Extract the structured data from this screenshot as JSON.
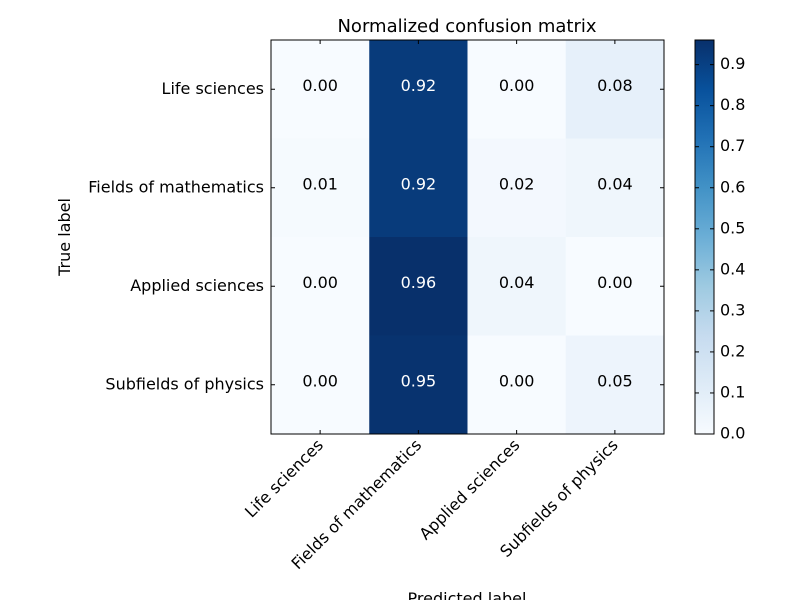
{
  "chart_data": {
    "type": "heatmap",
    "title": "Normalized confusion matrix",
    "xlabel": "Predicted label",
    "ylabel": "True label",
    "row_labels": [
      "Life sciences",
      "Fields of mathematics",
      "Applied sciences",
      "Subfields of physics"
    ],
    "col_labels": [
      "Life sciences",
      "Fields of mathematics",
      "Applied sciences",
      "Subfields of physics"
    ],
    "values": [
      [
        0.0,
        0.92,
        0.0,
        0.08
      ],
      [
        0.01,
        0.92,
        0.02,
        0.04
      ],
      [
        0.0,
        0.96,
        0.04,
        0.0
      ],
      [
        0.0,
        0.95,
        0.0,
        0.05
      ]
    ],
    "cell_labels": [
      [
        "0.00",
        "0.92",
        "0.00",
        "0.08"
      ],
      [
        "0.01",
        "0.92",
        "0.02",
        "0.04"
      ],
      [
        "0.00",
        "0.96",
        "0.04",
        "0.00"
      ],
      [
        "0.00",
        "0.95",
        "0.00",
        "0.05"
      ]
    ],
    "colormap": "Blues",
    "colorbar": {
      "vmin": 0.0,
      "vmax": 0.96,
      "ticks": [
        "0.0",
        "0.1",
        "0.2",
        "0.3",
        "0.4",
        "0.5",
        "0.6",
        "0.7",
        "0.8",
        "0.9"
      ]
    },
    "text_color_dark": "#ffffff",
    "text_color_light": "#000000"
  }
}
